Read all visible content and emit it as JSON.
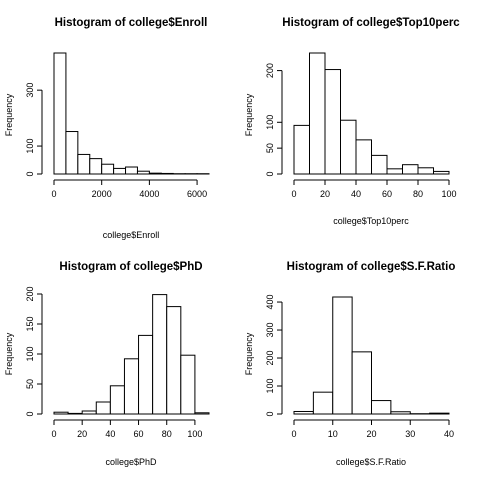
{
  "chart_data": [
    {
      "type": "bar",
      "title": "Histogram of college$Enroll",
      "xlabel": "college$Enroll",
      "ylabel": "Frequency",
      "bin_edges": [
        0,
        500,
        1000,
        1500,
        2000,
        2500,
        3000,
        3500,
        4000,
        4500,
        5000,
        5500,
        6000,
        6500
      ],
      "values": [
        433,
        152,
        70,
        55,
        35,
        20,
        25,
        10,
        3,
        2,
        1,
        1,
        1
      ],
      "xlim": [
        0,
        6500
      ],
      "ylim": [
        0,
        433
      ],
      "x_ticks": [
        0,
        2000,
        4000,
        6000
      ],
      "y_ticks": [
        0,
        100,
        300
      ]
    },
    {
      "type": "bar",
      "title": "Histogram of college$Top10perc",
      "xlabel": "college$Top10perc",
      "ylabel": "Frequency",
      "bin_edges": [
        0,
        10,
        20,
        30,
        40,
        50,
        60,
        70,
        80,
        90,
        100
      ],
      "values": [
        94,
        234,
        202,
        104,
        66,
        36,
        10,
        18,
        12,
        5
      ],
      "xlim": [
        0,
        100
      ],
      "ylim": [
        0,
        234
      ],
      "x_ticks": [
        0,
        20,
        40,
        60,
        80,
        100
      ],
      "y_ticks": [
        0,
        50,
        100,
        200
      ]
    },
    {
      "type": "bar",
      "title": "Histogram of college$PhD",
      "xlabel": "college$PhD",
      "ylabel": "Frequency",
      "bin_edges": [
        0,
        10,
        20,
        30,
        40,
        50,
        60,
        70,
        80,
        90,
        100,
        110
      ],
      "values": [
        3,
        1,
        5,
        20,
        47,
        92,
        131,
        199,
        179,
        98,
        2
      ],
      "xlim": [
        0,
        110
      ],
      "ylim": [
        0,
        200
      ],
      "x_ticks": [
        0,
        20,
        40,
        60,
        80,
        100
      ],
      "y_ticks": [
        0,
        50,
        100,
        150,
        200
      ]
    },
    {
      "type": "bar",
      "title": "Histogram of college$S.F.Ratio",
      "xlabel": "college$S.F.Ratio",
      "ylabel": "Frequency",
      "bin_edges": [
        0,
        5,
        10,
        15,
        20,
        25,
        30,
        35,
        40
      ],
      "values": [
        9,
        78,
        418,
        222,
        48,
        8,
        1,
        3
      ],
      "xlim": [
        0,
        40
      ],
      "ylim": [
        0,
        418
      ],
      "x_ticks": [
        0,
        10,
        20,
        30,
        40
      ],
      "y_ticks": [
        0,
        100,
        200,
        300,
        400
      ]
    }
  ]
}
